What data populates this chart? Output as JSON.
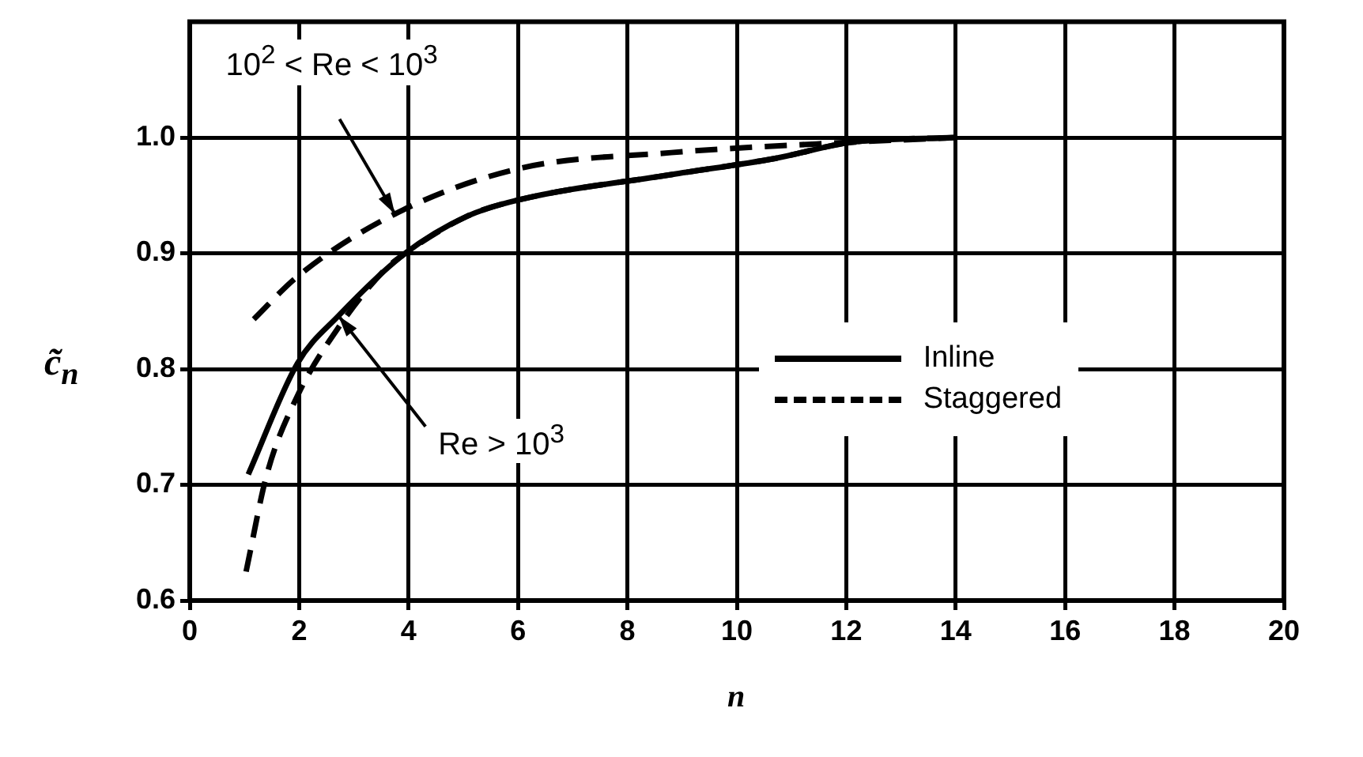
{
  "chart_data": {
    "type": "line",
    "xlabel": "n",
    "ylabel": "c̃$_{n}$",
    "xlim": [
      0,
      20
    ],
    "xticks": [
      0,
      2,
      4,
      6,
      8,
      10,
      12,
      14,
      16,
      18,
      20
    ],
    "ylim": [
      0.6,
      1.1
    ],
    "yticks": [
      0.6,
      0.7,
      0.8,
      0.9,
      {
        "value": 1,
        "label": "1.0"
      }
    ],
    "grid": true,
    "legend": "right",
    "marker": "none",
    "series": [
      {
        "name": "Inline",
        "color": "#000000",
        "line_style": "solid",
        "x": [
          1.07,
          1.97,
          2.72,
          3.94,
          5.07,
          6.0,
          8.8,
          10.7,
          12.1,
          14
        ],
        "values": [
          0.709,
          0.805,
          0.846,
          0.9,
          0.932,
          0.946,
          0.968,
          0.982,
          0.996,
          1.0
        ]
      },
      {
        "name": "Staggered",
        "color": "#000000",
        "line_style": "dashed",
        "x": [
          1.17,
          1.97,
          3.75,
          6.0,
          8.8,
          12.1,
          14
        ],
        "values": [
          0.843,
          0.88,
          0.934,
          0.973,
          0.987,
          0.996,
          1.0
        ]
      },
      {
        "color": "#000000",
        "line_style": "dashed",
        "x": [
          1.03,
          1.41,
          1.97,
          2.72,
          3.57,
          3.94,
          5.07,
          6.0,
          8.8,
          10.7,
          12.1,
          14
        ],
        "values": [
          0.625,
          0.709,
          0.777,
          0.836,
          0.886,
          0.9,
          0.932,
          0.946,
          0.968,
          0.982,
          0.996,
          1.0
        ]
      }
    ],
    "annotations": [
      {
        "text": "10$^{2}$ < Re < 10$^{3}$",
        "x": 3.75,
        "y": 0.934
      },
      {
        "text": "Re > 10$^{3}$",
        "x": 2.72,
        "y": 0.846
      }
    ]
  }
}
